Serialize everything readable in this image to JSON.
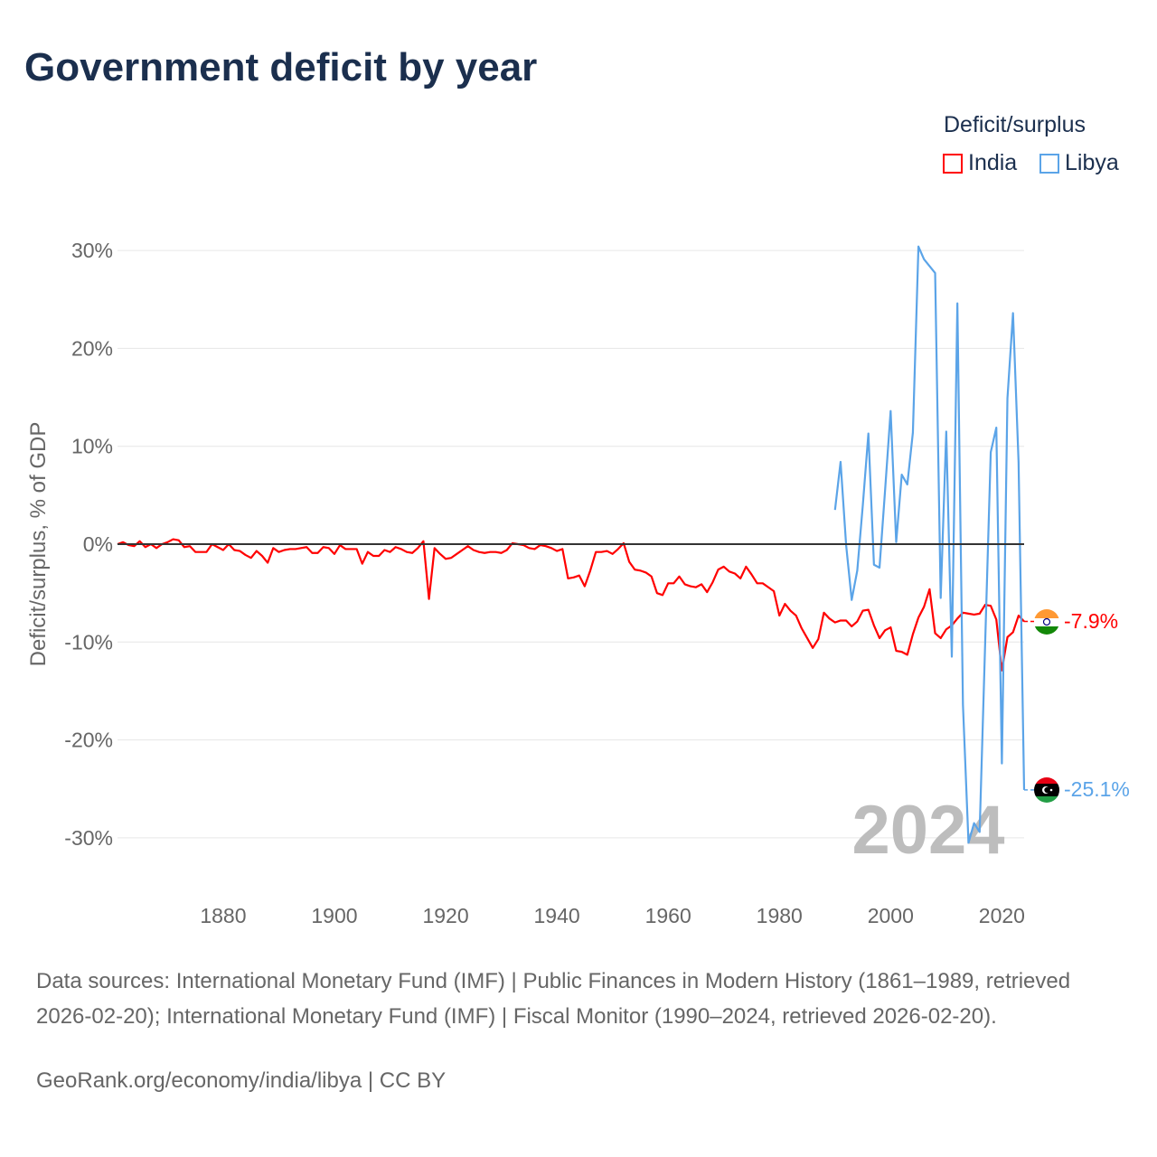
{
  "chart_data": {
    "type": "line",
    "title": "Government deficit by year",
    "ylabel": "Deficit/surplus, % of GDP",
    "xlabel": "",
    "xlim": [
      1861,
      2024
    ],
    "ylim": [
      -33,
      33
    ],
    "x_ticks": [
      1880,
      1900,
      1920,
      1940,
      1960,
      1980,
      2000,
      2020
    ],
    "y_ticks": [
      30,
      20,
      10,
      0,
      -10,
      -20,
      -30
    ],
    "y_tick_labels": [
      "30%",
      "20%",
      "10%",
      "0%",
      "-10%",
      "-20%",
      "-30%"
    ],
    "grid": true,
    "legend_title": "Deficit/surplus",
    "legend_position": "top-right",
    "year_label": "2024",
    "series": [
      {
        "name": "India",
        "color": "#ff0000",
        "start_year": 1861,
        "end_label": "-7.9%",
        "values": [
          0,
          0.2,
          -0.1,
          -0.2,
          0.3,
          -0.3,
          0,
          -0.4,
          0,
          0.2,
          0.5,
          0.4,
          -0.3,
          -0.2,
          -0.8,
          -0.8,
          -0.8,
          0,
          -0.3,
          -0.6,
          0,
          -0.6,
          -0.7,
          -1.1,
          -1.4,
          -0.7,
          -1.2,
          -1.9,
          -0.4,
          -0.8,
          -0.6,
          -0.5,
          -0.5,
          -0.4,
          -0.3,
          -0.9,
          -0.9,
          -0.3,
          -0.4,
          -1.0,
          -0.1,
          -0.5,
          -0.5,
          -0.5,
          -2.0,
          -0.8,
          -1.2,
          -1.2,
          -0.6,
          -0.8,
          -0.3,
          -0.5,
          -0.8,
          -0.9,
          -0.4,
          0.3,
          -5.6,
          -0.4,
          -1.0,
          -1.5,
          -1.4,
          -1.0,
          -0.6,
          -0.2,
          -0.6,
          -0.8,
          -0.9,
          -0.8,
          -0.8,
          -0.9,
          -0.6,
          0.1,
          0,
          -0.1,
          -0.4,
          -0.5,
          -0.1,
          -0.2,
          -0.4,
          -0.7,
          -0.5,
          -3.5,
          -3.4,
          -3.2,
          -4.3,
          -2.7,
          -0.8,
          -0.8,
          -0.7,
          -1.0,
          -0.5,
          0.1,
          -1.8,
          -2.6,
          -2.7,
          -2.9,
          -3.3,
          -5.0,
          -5.2,
          -4.0,
          -4.0,
          -3.3,
          -4.1,
          -4.3,
          -4.4,
          -4.1,
          -4.9,
          -3.9,
          -2.6,
          -2.3,
          -2.8,
          -3.0,
          -3.5,
          -2.3,
          -3.1,
          -4.0,
          -4.0,
          -4.4,
          -4.8,
          -7.3,
          -6.1,
          -6.8,
          -7.3,
          -8.6,
          -9.6,
          -10.6,
          -9.7,
          -7.0,
          -7.6,
          -8.0,
          -7.8,
          -7.8,
          -8.4,
          -7.9,
          -6.8,
          -6.7,
          -8.3,
          -9.6,
          -8.8,
          -8.5,
          -10.9,
          -11.0,
          -11.3,
          -9.2,
          -7.5,
          -6.4,
          -4.6,
          -9.1,
          -9.6,
          -8.7,
          -8.3,
          -7.6,
          -7.0,
          -7.1,
          -7.2,
          -7.1,
          -6.2,
          -6.3,
          -7.7,
          -12.9,
          -9.5,
          -9.0,
          -7.3,
          -7.9
        ]
      },
      {
        "name": "Libya",
        "color": "#5ba4e8",
        "start_year": 1990,
        "end_label": "-25.1%",
        "values": [
          3.5,
          8.4,
          -0.1,
          -5.7,
          -2.7,
          4.0,
          11.3,
          -2.1,
          -2.4,
          5.5,
          13.6,
          0.2,
          7.1,
          6.1,
          11.4,
          30.4,
          29.1,
          28.4,
          27.7,
          -5.5,
          11.5,
          -11.5,
          24.6,
          -16.4,
          -30.5,
          -28.5,
          -29.4,
          -10.0,
          9.4,
          11.9,
          -22.4,
          14.9,
          23.6,
          8.4,
          -25.1
        ]
      }
    ]
  },
  "footer": {
    "sources": "Data sources: International Monetary Fund (IMF) | Public Finances in Modern History (1861–1989, retrieved 2026-02-20); International Monetary Fund (IMF) | Fiscal Monitor (1990–2024, retrieved 2026-02-20).",
    "credit": "GeoRank.org/economy/india/libya | CC BY"
  }
}
